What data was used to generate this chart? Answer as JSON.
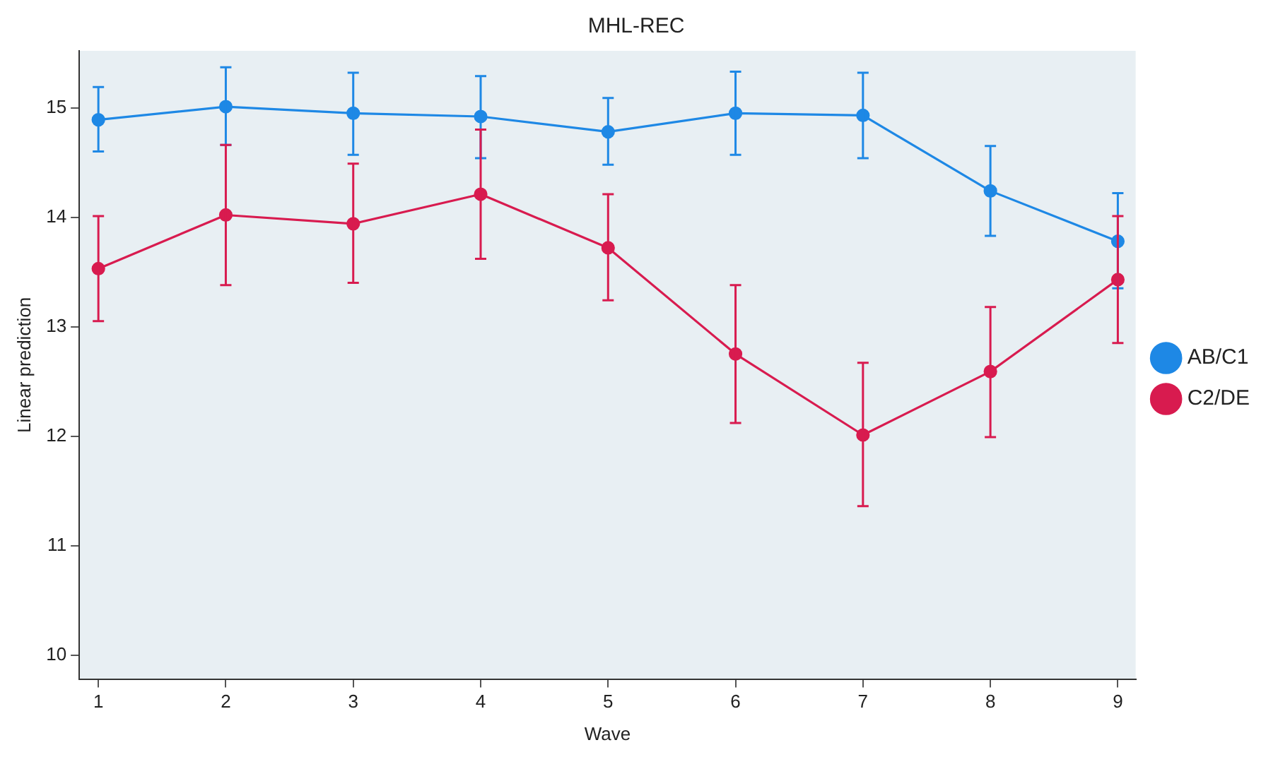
{
  "chart_data": {
    "type": "line",
    "title": "MHL-REC",
    "xlabel": "Wave",
    "ylabel": "Linear prediction",
    "x": [
      1,
      2,
      3,
      4,
      5,
      6,
      7,
      8,
      9
    ],
    "series": [
      {
        "name": "AB/C1",
        "color": "#1e88e5",
        "values": [
          14.89,
          15.01,
          14.95,
          14.92,
          14.78,
          14.95,
          14.93,
          14.24,
          13.78
        ],
        "errors": [
          [
            14.6,
            15.19
          ],
          [
            14.66,
            15.37
          ],
          [
            14.57,
            15.32
          ],
          [
            14.54,
            15.29
          ],
          [
            14.48,
            15.09
          ],
          [
            14.57,
            15.33
          ],
          [
            14.54,
            15.32
          ],
          [
            13.83,
            14.65
          ],
          [
            13.35,
            14.22
          ]
        ]
      },
      {
        "name": "C2/DE",
        "color": "#d81b4f",
        "values": [
          13.53,
          14.02,
          13.94,
          14.21,
          13.72,
          12.75,
          12.01,
          12.59,
          13.43
        ],
        "errors": [
          [
            13.05,
            14.01
          ],
          [
            13.38,
            14.66
          ],
          [
            13.4,
            14.49
          ],
          [
            13.62,
            14.8
          ],
          [
            13.24,
            14.21
          ],
          [
            12.12,
            13.38
          ],
          [
            11.36,
            12.67
          ],
          [
            11.99,
            13.18
          ],
          [
            12.85,
            14.01
          ]
        ]
      }
    ],
    "xlim": [
      0.85,
      9.14
    ],
    "xticks": [
      1,
      2,
      3,
      4,
      5,
      6,
      7,
      8,
      9
    ],
    "ylim": [
      9.78,
      15.52
    ],
    "yticks": [
      10,
      11,
      12,
      13,
      14,
      15
    ],
    "grid": false,
    "legend": "right",
    "marker": "circle",
    "line_style": "solid"
  }
}
